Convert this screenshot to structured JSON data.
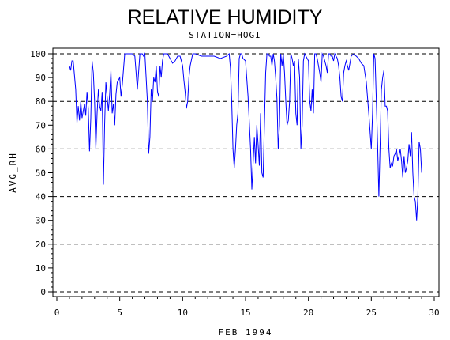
{
  "chart_data": {
    "type": "line",
    "title": "RELATIVE HUMIDITY",
    "subtitle": "STATION=HOGI",
    "xlabel": "FEB 1994",
    "ylabel": "AVG_RH",
    "xlim": [
      0,
      30
    ],
    "ylim": [
      0,
      100
    ],
    "x_ticks": [
      0,
      5,
      10,
      15,
      20,
      25,
      30
    ],
    "y_ticks": [
      0,
      10,
      20,
      30,
      40,
      50,
      60,
      70,
      80,
      90,
      100
    ],
    "grid": {
      "y_dashed_at": [
        0,
        20,
        40,
        60,
        80,
        100
      ]
    },
    "colors": {
      "line": "#0000ff",
      "axes": "#000000"
    },
    "series": [
      {
        "x": [
          1.0,
          1.1,
          1.2,
          1.3,
          1.5,
          1.6,
          1.7,
          1.8,
          1.9,
          2.0,
          2.1,
          2.2,
          2.3,
          2.4,
          2.5,
          2.6,
          2.7,
          2.8,
          2.9,
          3.0,
          3.1,
          3.2,
          3.3,
          3.4,
          3.5,
          3.6,
          3.7,
          3.8,
          3.9,
          4.0,
          4.1,
          4.2,
          4.3,
          4.4,
          4.5,
          4.6,
          4.7,
          4.8,
          4.9,
          5.0,
          5.1,
          5.2,
          5.4,
          5.6,
          5.8,
          6.0,
          6.2,
          6.4,
          6.6,
          6.8,
          6.9,
          7.0,
          7.1,
          7.2,
          7.3,
          7.4,
          7.5,
          7.6,
          7.7,
          7.8,
          7.9,
          8.0,
          8.1,
          8.2,
          8.3,
          8.4,
          8.5,
          8.6,
          8.8,
          9.0,
          9.2,
          9.4,
          9.6,
          9.8,
          10.0,
          10.1,
          10.2,
          10.3,
          10.4,
          10.5,
          10.6,
          10.8,
          11.0,
          11.5,
          12.0,
          12.5,
          13.0,
          13.5,
          13.7,
          13.8,
          13.9,
          14.0,
          14.1,
          14.2,
          14.3,
          14.4,
          14.5,
          14.6,
          14.7,
          14.8,
          15.0,
          15.2,
          15.4,
          15.5,
          15.6,
          15.7,
          15.8,
          15.9,
          16.0,
          16.1,
          16.2,
          16.3,
          16.4,
          16.5,
          16.6,
          16.7,
          16.8,
          16.9,
          17.0,
          17.1,
          17.2,
          17.3,
          17.4,
          17.5,
          17.6,
          17.7,
          17.8,
          17.9,
          18.0,
          18.1,
          18.2,
          18.3,
          18.4,
          18.5,
          18.6,
          18.7,
          18.8,
          18.9,
          19.0,
          19.1,
          19.2,
          19.3,
          19.4,
          19.5,
          19.6,
          19.7,
          19.8,
          19.9,
          20.0,
          20.1,
          20.2,
          20.3,
          20.4,
          20.5,
          20.6,
          20.7,
          20.8,
          20.9,
          21.0,
          21.1,
          21.2,
          21.3,
          21.4,
          21.5,
          21.6,
          21.7,
          21.8,
          21.9,
          22.0,
          22.1,
          22.2,
          22.3,
          22.4,
          22.5,
          22.6,
          22.7,
          22.8,
          22.9,
          23.0,
          23.2,
          23.4,
          23.6,
          23.8,
          24.0,
          24.2,
          24.4,
          24.6,
          24.8,
          25.0,
          25.1,
          25.2,
          25.3,
          25.4,
          25.5,
          25.6,
          25.7,
          25.8,
          25.9,
          26.0,
          26.1,
          26.2,
          26.3,
          26.4,
          26.5,
          26.6,
          26.7,
          26.8,
          26.9,
          27.0,
          27.1,
          27.2,
          27.3,
          27.4,
          27.5,
          27.6,
          27.7,
          27.8,
          27.9,
          28.0,
          28.1,
          28.2,
          28.3,
          28.4,
          28.5,
          28.6,
          28.7,
          28.8,
          28.9,
          29.0
        ],
        "y": [
          95,
          93,
          97,
          97,
          85,
          71,
          78,
          72,
          80,
          73,
          76,
          79,
          74,
          84,
          77,
          59,
          73,
          97,
          92,
          80,
          60,
          75,
          85,
          78,
          76,
          84,
          45,
          70,
          88,
          82,
          76,
          83,
          93,
          75,
          79,
          70,
          83,
          88,
          89,
          90,
          82,
          87,
          100,
          100,
          100,
          100,
          99,
          85,
          100,
          100,
          99,
          100,
          90,
          80,
          58,
          65,
          85,
          80,
          90,
          88,
          95,
          84,
          82,
          95,
          90,
          97,
          100,
          100,
          100,
          98,
          96,
          97,
          99,
          99,
          95,
          89,
          84,
          77,
          80,
          90,
          95,
          100,
          100,
          99,
          99,
          99,
          98,
          99,
          100,
          94,
          80,
          60,
          52,
          60,
          70,
          75,
          98,
          100,
          100,
          98,
          97,
          82,
          60,
          43,
          54,
          65,
          54,
          70,
          62,
          53,
          75,
          50,
          48,
          70,
          92,
          100,
          100,
          99,
          99,
          95,
          100,
          97,
          90,
          81,
          60,
          70,
          100,
          95,
          100,
          92,
          80,
          70,
          72,
          80,
          100,
          98,
          95,
          97,
          75,
          70,
          98,
          90,
          60,
          70,
          97,
          100,
          99,
          98,
          97,
          80,
          76,
          85,
          75,
          100,
          100,
          98,
          95,
          92,
          88,
          100,
          99,
          97,
          95,
          92,
          100,
          100,
          99,
          99,
          97,
          100,
          99,
          98,
          95,
          90,
          82,
          80,
          92,
          95,
          97,
          93,
          99,
          100,
          99,
          98,
          96,
          95,
          88,
          75,
          60,
          75,
          100,
          98,
          80,
          62,
          40,
          62,
          85,
          90,
          93,
          78,
          78,
          76,
          60,
          52,
          54,
          53,
          57,
          58,
          60,
          55,
          57,
          60,
          55,
          48,
          57,
          50,
          52,
          55,
          62,
          57,
          67,
          50,
          40,
          38,
          30,
          40,
          63,
          60,
          50
        ]
      }
    ]
  }
}
